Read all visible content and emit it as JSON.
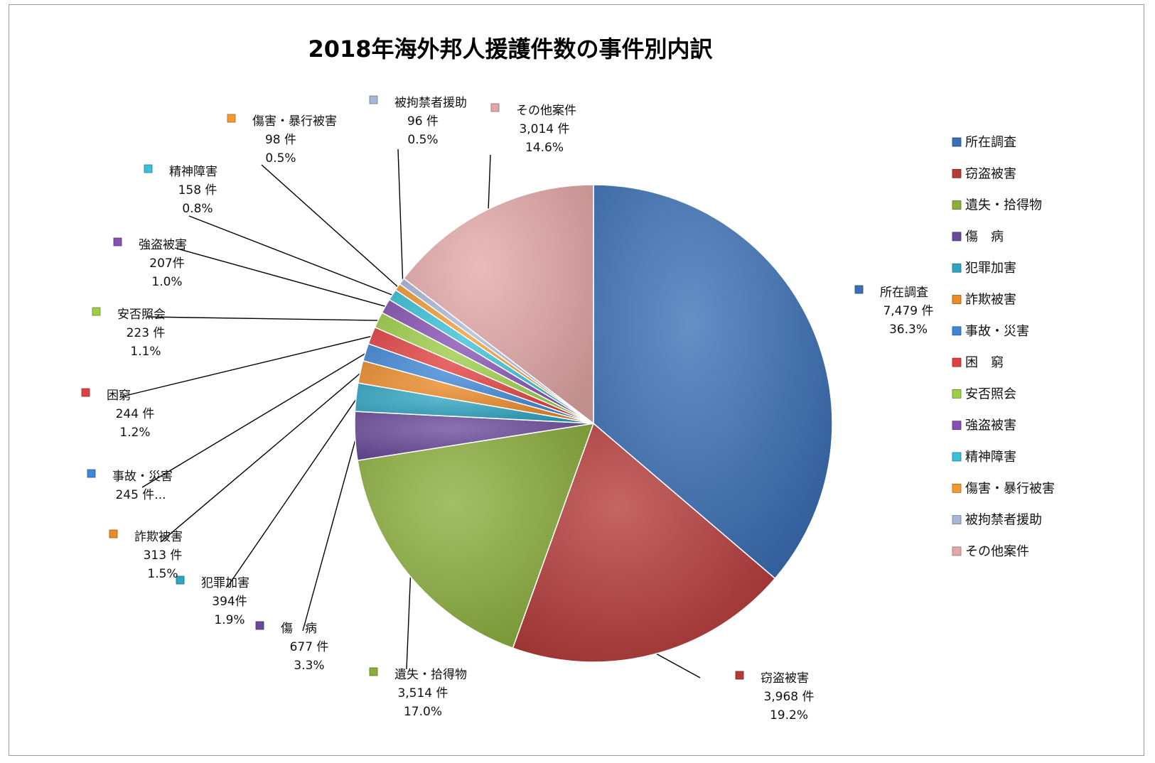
{
  "chart_data": {
    "type": "pie",
    "title": "2018年海外邦人援護件数の事件別内訳",
    "legend_position": "right",
    "slices": [
      {
        "name": "所在調査",
        "label": "所在調査",
        "value": 7479,
        "value_text": "7,479 件",
        "pct_text": "36.3%",
        "color": "#3a6fb5"
      },
      {
        "name": "窃盗被害",
        "label": "窃盗被害",
        "value": 3968,
        "value_text": "3,968 件",
        "pct_text": "19.2%",
        "color": "#b53a38"
      },
      {
        "name": "遺失・拾得物",
        "label": "遺失・拾得物",
        "value": 3514,
        "value_text": "3,514 件",
        "pct_text": "17.0%",
        "color": "#8aae3c"
      },
      {
        "name": "傷　病",
        "label": "傷　病",
        "value": 677,
        "value_text": "677 件",
        "pct_text": "3.3%",
        "color": "#6a4a9a"
      },
      {
        "name": "犯罪加害",
        "label": "犯罪加害",
        "value": 394,
        "value_text": "394件",
        "pct_text": "1.9%",
        "color": "#2fa5c2"
      },
      {
        "name": "詐欺被害",
        "label": "詐欺被害",
        "value": 313,
        "value_text": "313 件",
        "pct_text": "1.5%",
        "color": "#ec8a28"
      },
      {
        "name": "事故・災害",
        "label": "事故・災害",
        "value": 245,
        "value_text": "245 件...",
        "pct_text": "",
        "color": "#3f86d6"
      },
      {
        "name": "困　窮",
        "label": "困窮",
        "value": 244,
        "value_text": "244 件",
        "pct_text": "1.2%",
        "color": "#e24040"
      },
      {
        "name": "安否照会",
        "label": "安否照会",
        "value": 223,
        "value_text": "223 件",
        "pct_text": "1.1%",
        "color": "#9cce48"
      },
      {
        "name": "強盗被害",
        "label": "強盗被害",
        "value": 207,
        "value_text": "207件",
        "pct_text": "1.0%",
        "color": "#8450b2"
      },
      {
        "name": "精神障害",
        "label": "精神障害",
        "value": 158,
        "value_text": "158 件",
        "pct_text": "0.8%",
        "color": "#39c0d8"
      },
      {
        "name": "傷害・暴行被害",
        "label": "傷害・暴行被害",
        "value": 98,
        "value_text": "98 件",
        "pct_text": "0.5%",
        "color": "#f59a30"
      },
      {
        "name": "被拘禁者援助",
        "label": "被拘禁者援助",
        "value": 96,
        "value_text": "96 件",
        "pct_text": "0.5%",
        "color": "#a8b8d8"
      },
      {
        "name": "その他案件",
        "label": "その他案件",
        "value": 3014,
        "value_text": "3,014 件",
        "pct_text": "14.6%",
        "color": "#e4a8a8"
      }
    ]
  }
}
